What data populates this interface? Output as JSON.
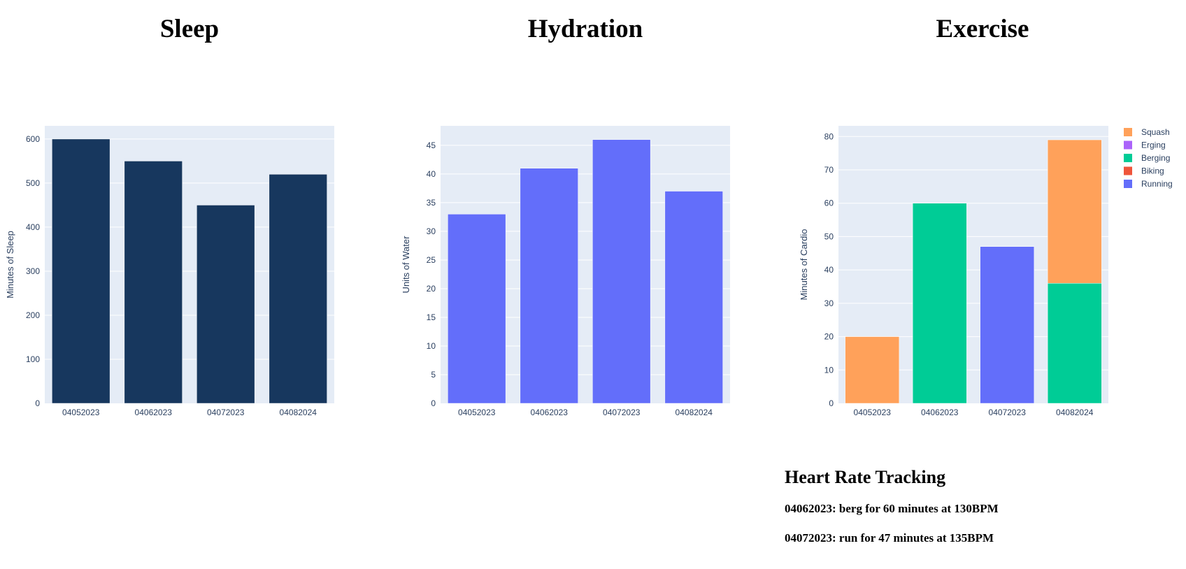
{
  "titles": {
    "sleep": "Sleep",
    "hydration": "Hydration",
    "exercise": "Exercise"
  },
  "chart_data": [
    {
      "id": "sleep",
      "type": "bar",
      "categories": [
        "04052023",
        "04062023",
        "04072023",
        "04082024"
      ],
      "series": [
        {
          "values": [
            600,
            550,
            450,
            520
          ],
          "color": "#17375e"
        }
      ],
      "ylabel": "Minutes of Sleep",
      "xlabel": "",
      "ylim": [
        0,
        630
      ],
      "yticks": [
        0,
        100,
        200,
        300,
        400,
        500,
        600
      ],
      "grid": true,
      "legend": "none"
    },
    {
      "id": "hydration",
      "type": "bar",
      "categories": [
        "04052023",
        "04062023",
        "04072023",
        "04082024"
      ],
      "series": [
        {
          "values": [
            33,
            41,
            46,
            37
          ],
          "color": "#636efa"
        }
      ],
      "ylabel": "Units of Water",
      "xlabel": "",
      "ylim": [
        0,
        48.4
      ],
      "yticks": [
        0,
        5,
        10,
        15,
        20,
        25,
        30,
        35,
        40,
        45
      ],
      "grid": true,
      "legend": "none"
    },
    {
      "id": "exercise",
      "type": "bar",
      "stacked": true,
      "categories": [
        "04052023",
        "04062023",
        "04072023",
        "04082024"
      ],
      "series": [
        {
          "name": "Running",
          "values": [
            0,
            0,
            47,
            0
          ],
          "color": "#636efa"
        },
        {
          "name": "Biking",
          "values": [
            0,
            0,
            0,
            0
          ],
          "color": "#ef553b"
        },
        {
          "name": "Berging",
          "values": [
            0,
            60,
            0,
            36
          ],
          "color": "#00cc96"
        },
        {
          "name": "Erging",
          "values": [
            0,
            0,
            0,
            0
          ],
          "color": "#ab63fa"
        },
        {
          "name": "Squash",
          "values": [
            20,
            0,
            0,
            43
          ],
          "color": "#ffa15a"
        }
      ],
      "ylabel": "Minutes of Cardio",
      "xlabel": "",
      "ylim": [
        0,
        83.2
      ],
      "yticks": [
        0,
        10,
        20,
        30,
        40,
        50,
        60,
        70,
        80
      ],
      "grid": true,
      "legend": "top-right"
    }
  ],
  "heart_rate": {
    "title": "Heart Rate Tracking",
    "entries": [
      "04062023: berg for 60 minutes at 130BPM",
      "04072023: run for 47 minutes at 135BPM"
    ]
  }
}
